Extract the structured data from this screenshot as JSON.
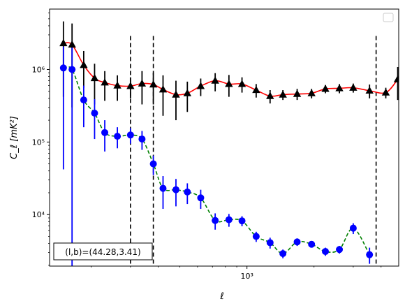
{
  "chart_data": {
    "type": "scatter",
    "title": "",
    "xlabel": "ℓ",
    "ylabel": "C_ℓ  [mK²]",
    "xscale": "log",
    "yscale": "log",
    "xlim": [
      130,
      4800
    ],
    "ylim": [
      1950,
      6800000
    ],
    "grid": false,
    "legend": "top-right (empty)",
    "annotation": "(l,b)=(44.28,3.41)",
    "x_ticks": [
      {
        "value": 1000,
        "label": "10³"
      }
    ],
    "y_ticks": [
      {
        "value": 10000,
        "label": "10⁴"
      },
      {
        "value": 100000,
        "label": "10⁵"
      },
      {
        "value": 1000000,
        "label": "10⁶"
      }
    ],
    "vlines": [
      300,
      380,
      3800
    ],
    "series": [
      {
        "marker": "triangle",
        "color": "#000000",
        "fit_color": "#ff0000",
        "fit_style": "solid",
        "points": [
          {
            "x": 150,
            "y": 2300000,
            "lo": 420000,
            "hi": 4600000
          },
          {
            "x": 164,
            "y": 2200000,
            "lo": 300000,
            "hi": 4300000
          },
          {
            "x": 185,
            "y": 1150000,
            "lo": 560000,
            "hi": 1800000
          },
          {
            "x": 207,
            "y": 760000,
            "lo": 330000,
            "hi": 1200000
          },
          {
            "x": 230,
            "y": 660000,
            "lo": 370000,
            "hi": 950000
          },
          {
            "x": 262,
            "y": 600000,
            "lo": 370000,
            "hi": 830000
          },
          {
            "x": 300,
            "y": 590000,
            "lo": 400000,
            "hi": 780000
          },
          {
            "x": 338,
            "y": 640000,
            "lo": 330000,
            "hi": 950000
          },
          {
            "x": 380,
            "y": 620000,
            "lo": 330000,
            "hi": 900000
          },
          {
            "x": 420,
            "y": 530000,
            "lo": 230000,
            "hi": 830000
          },
          {
            "x": 480,
            "y": 450000,
            "lo": 200000,
            "hi": 700000
          },
          {
            "x": 540,
            "y": 470000,
            "lo": 260000,
            "hi": 680000
          },
          {
            "x": 620,
            "y": 590000,
            "lo": 430000,
            "hi": 750000
          },
          {
            "x": 720,
            "y": 700000,
            "lo": 500000,
            "hi": 890000
          },
          {
            "x": 830,
            "y": 630000,
            "lo": 420000,
            "hi": 840000
          },
          {
            "x": 950,
            "y": 630000,
            "lo": 480000,
            "hi": 780000
          },
          {
            "x": 1100,
            "y": 520000,
            "lo": 410000,
            "hi": 630000
          },
          {
            "x": 1270,
            "y": 430000,
            "lo": 340000,
            "hi": 520000
          },
          {
            "x": 1450,
            "y": 450000,
            "lo": 380000,
            "hi": 520000
          },
          {
            "x": 1680,
            "y": 460000,
            "lo": 380000,
            "hi": 540000
          },
          {
            "x": 1950,
            "y": 470000,
            "lo": 400000,
            "hi": 540000
          },
          {
            "x": 2250,
            "y": 540000,
            "lo": 470000,
            "hi": 610000
          },
          {
            "x": 2600,
            "y": 550000,
            "lo": 470000,
            "hi": 630000
          },
          {
            "x": 3000,
            "y": 560000,
            "lo": 480000,
            "hi": 640000
          },
          {
            "x": 3550,
            "y": 510000,
            "lo": 400000,
            "hi": 620000
          },
          {
            "x": 4200,
            "y": 480000,
            "lo": 400000,
            "hi": 560000
          },
          {
            "x": 4750,
            "y": 730000,
            "lo": 380000,
            "hi": 1080000
          }
        ]
      },
      {
        "marker": "circle",
        "color": "#0000ff",
        "fit_color": "#008000",
        "fit_style": "dashed",
        "points": [
          {
            "x": 150,
            "y": 1050000,
            "lo": 42000,
            "hi": 2070000
          },
          {
            "x": 164,
            "y": 1000000,
            "lo": 1950,
            "hi": 2000000
          },
          {
            "x": 185,
            "y": 380000,
            "lo": 160000,
            "hi": 600000
          },
          {
            "x": 207,
            "y": 250000,
            "lo": 110000,
            "hi": 390000
          },
          {
            "x": 230,
            "y": 135000,
            "lo": 74000,
            "hi": 200000
          },
          {
            "x": 262,
            "y": 120000,
            "lo": 82000,
            "hi": 160000
          },
          {
            "x": 300,
            "y": 125000,
            "lo": 95000,
            "hi": 155000
          },
          {
            "x": 338,
            "y": 110000,
            "lo": 78000,
            "hi": 142000
          },
          {
            "x": 380,
            "y": 50000,
            "lo": 35000,
            "hi": 65000
          },
          {
            "x": 420,
            "y": 23000,
            "lo": 12000,
            "hi": 34000
          },
          {
            "x": 480,
            "y": 22000,
            "lo": 13000,
            "hi": 31000
          },
          {
            "x": 540,
            "y": 20500,
            "lo": 14000,
            "hi": 27000
          },
          {
            "x": 620,
            "y": 17000,
            "lo": 12000,
            "hi": 22000
          },
          {
            "x": 720,
            "y": 8300,
            "lo": 6200,
            "hi": 10400
          },
          {
            "x": 830,
            "y": 8500,
            "lo": 6800,
            "hi": 10200
          },
          {
            "x": 950,
            "y": 8200,
            "lo": 6900,
            "hi": 9500
          },
          {
            "x": 1100,
            "y": 5000,
            "lo": 4200,
            "hi": 5800
          },
          {
            "x": 1270,
            "y": 4100,
            "lo": 3400,
            "hi": 4800
          },
          {
            "x": 1450,
            "y": 2900,
            "lo": 2500,
            "hi": 3300
          },
          {
            "x": 1680,
            "y": 4200,
            "lo": 3700,
            "hi": 4700
          },
          {
            "x": 1950,
            "y": 3900,
            "lo": 3600,
            "hi": 4200
          },
          {
            "x": 2250,
            "y": 3100,
            "lo": 2700,
            "hi": 3500
          },
          {
            "x": 2600,
            "y": 3300,
            "lo": 2900,
            "hi": 3700
          },
          {
            "x": 3000,
            "y": 6500,
            "lo": 5400,
            "hi": 7600
          },
          {
            "x": 3550,
            "y": 2800,
            "lo": 2100,
            "hi": 3500
          }
        ]
      }
    ]
  }
}
